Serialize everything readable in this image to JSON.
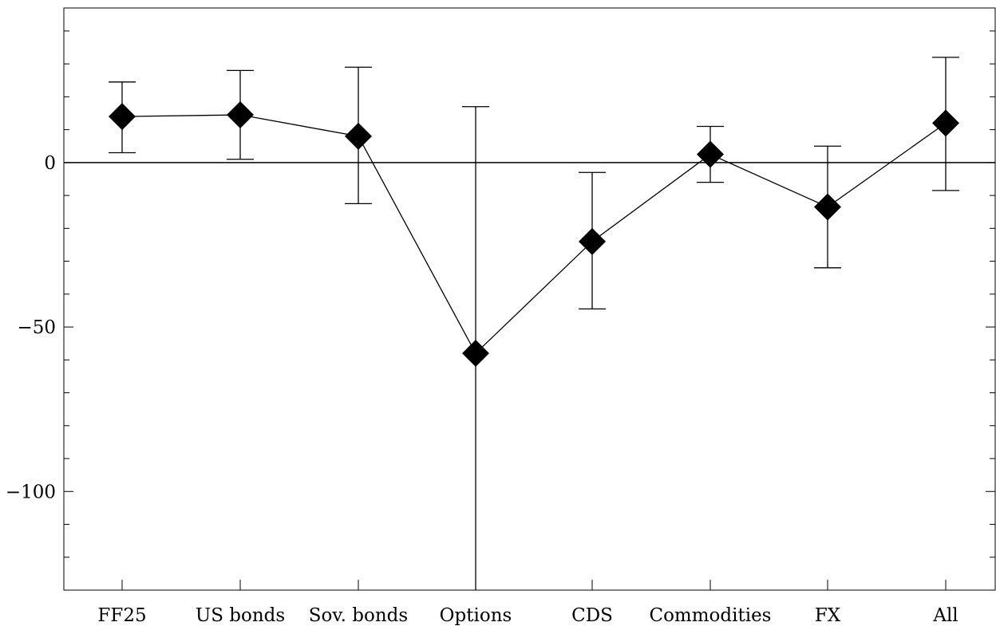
{
  "chart_data": {
    "type": "scatter",
    "title": "",
    "xlabel": "",
    "ylabel": "",
    "categories": [
      "FF25",
      "US bonds",
      "Sov. bonds",
      "Options",
      "CDS",
      "Commodities",
      "FX",
      "All"
    ],
    "series": [
      {
        "values": [
          14,
          14.5,
          8,
          -58,
          -24,
          2.5,
          -13.5,
          12
        ],
        "error_low": [
          3,
          1,
          -12.5,
          -130,
          -44.5,
          -6,
          -32,
          -8.5
        ],
        "error_high": [
          24.5,
          28,
          29,
          17,
          -3,
          11,
          5,
          32
        ],
        "marker": "diamond",
        "connected": true
      }
    ],
    "ylim": [
      -130,
      47
    ],
    "yticks": [
      0,
      -50,
      -100
    ],
    "ytick_labels": [
      "0",
      "−50",
      "−100"
    ],
    "reference_line": 0,
    "grid": false,
    "legend": "none",
    "colors": {
      "marker": "#000000",
      "line": "#000000",
      "axes": "#000000"
    }
  }
}
